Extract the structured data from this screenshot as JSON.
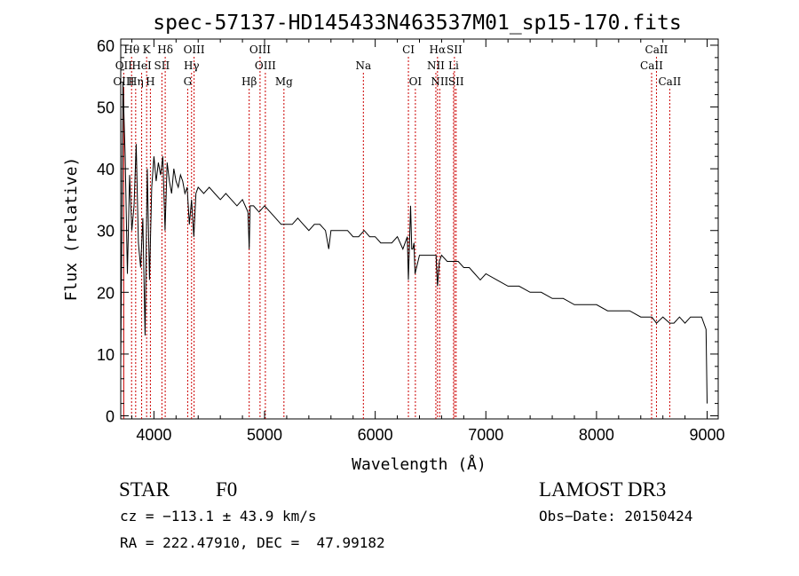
{
  "chart_data": {
    "type": "line",
    "title": "spec-57137-HD145433N463537M01_sp15-170.fits",
    "xlabel": "Wavelength (Å)",
    "ylabel": "Flux (relative)",
    "xlim": [
      3700,
      9100
    ],
    "ylim": [
      -0.5,
      61
    ],
    "xticks": [
      4000,
      5000,
      6000,
      7000,
      8000,
      9000
    ],
    "yticks": [
      0,
      10,
      20,
      30,
      40,
      50,
      60
    ],
    "line_color": "#000000",
    "marker_color": "#cc0000",
    "series": [
      {
        "name": "flux",
        "x": [
          3700,
          3720,
          3740,
          3760,
          3780,
          3800,
          3820,
          3840,
          3860,
          3880,
          3900,
          3920,
          3940,
          3960,
          3980,
          4000,
          4020,
          4040,
          4060,
          4080,
          4100,
          4120,
          4140,
          4160,
          4180,
          4200,
          4220,
          4240,
          4260,
          4280,
          4300,
          4320,
          4340,
          4360,
          4380,
          4400,
          4450,
          4500,
          4550,
          4600,
          4650,
          4700,
          4750,
          4800,
          4850,
          4861,
          4870,
          4900,
          4950,
          5000,
          5050,
          5100,
          5150,
          5200,
          5250,
          5300,
          5350,
          5400,
          5450,
          5500,
          5550,
          5580,
          5600,
          5650,
          5700,
          5750,
          5800,
          5850,
          5900,
          5950,
          6000,
          6050,
          6100,
          6150,
          6200,
          6250,
          6290,
          6300,
          6310,
          6320,
          6330,
          6340,
          6350,
          6360,
          6400,
          6450,
          6500,
          6550,
          6563,
          6580,
          6600,
          6650,
          6700,
          6750,
          6800,
          6850,
          6900,
          6950,
          7000,
          7100,
          7200,
          7300,
          7400,
          7500,
          7600,
          7700,
          7800,
          7900,
          8000,
          8100,
          8200,
          8300,
          8400,
          8500,
          8542,
          8600,
          8662,
          8700,
          8750,
          8800,
          8850,
          8900,
          8950,
          8990,
          9000
        ],
        "values": [
          8,
          54,
          42,
          23,
          39,
          30,
          34,
          44,
          28,
          24,
          32,
          13,
          40,
          22,
          37,
          42,
          38,
          41,
          39,
          42,
          30,
          41,
          38,
          36,
          40,
          38,
          37,
          39,
          38,
          36,
          37,
          31,
          35,
          29,
          36,
          37,
          36,
          37,
          36,
          35,
          36,
          35,
          34,
          35,
          33,
          27,
          34,
          34,
          33,
          34,
          33,
          32,
          31,
          31,
          31,
          32,
          31,
          30,
          31,
          31,
          30,
          27,
          30,
          30,
          30,
          30,
          29,
          29,
          30,
          29,
          29,
          28,
          28,
          28,
          29,
          27,
          29,
          22,
          28,
          34,
          27,
          27,
          28,
          23,
          26,
          26,
          26,
          26,
          21,
          25,
          26,
          25,
          25,
          25,
          24,
          24,
          23,
          22,
          23,
          22,
          21,
          21,
          20,
          20,
          19,
          19,
          18,
          18,
          18,
          17,
          17,
          17,
          16,
          16,
          15,
          16,
          15,
          15,
          16,
          15,
          16,
          16,
          16,
          14,
          2
        ]
      }
    ],
    "line_markers": [
      {
        "label": "Hθ",
        "x": 3798,
        "row": 1
      },
      {
        "label": "K",
        "x": 3934,
        "row": 1
      },
      {
        "label": "Hδ",
        "x": 4102,
        "row": 1
      },
      {
        "label": "OIII",
        "x": 4363,
        "row": 1
      },
      {
        "label": "OIII",
        "x": 4959,
        "row": 1
      },
      {
        "label": "CI",
        "x": 6300,
        "row": 1
      },
      {
        "label": "Hα",
        "x": 6563,
        "row": 1
      },
      {
        "label": "SII",
        "x": 6716,
        "row": 1
      },
      {
        "label": "CaII",
        "x": 8542,
        "row": 1
      },
      {
        "label": "OII",
        "x": 3727,
        "row": 2
      },
      {
        "label": "HeI",
        "x": 3889,
        "row": 2
      },
      {
        "label": "SII",
        "x": 4072,
        "row": 2
      },
      {
        "label": "Hγ",
        "x": 4340,
        "row": 2
      },
      {
        "label": "OIII",
        "x": 5007,
        "row": 2
      },
      {
        "label": "Na",
        "x": 5893,
        "row": 2
      },
      {
        "label": "NII",
        "x": 6548,
        "row": 2
      },
      {
        "label": "Li",
        "x": 6708,
        "row": 2
      },
      {
        "label": "CaII",
        "x": 8498,
        "row": 2
      },
      {
        "label": "OIII",
        "x": 3727,
        "row": 3
      },
      {
        "label": "Hη",
        "x": 3835,
        "row": 3
      },
      {
        "label": "H",
        "x": 3968,
        "row": 3
      },
      {
        "label": "G",
        "x": 4305,
        "row": 3
      },
      {
        "label": "Hβ",
        "x": 4861,
        "row": 3
      },
      {
        "label": "Mg",
        "x": 5175,
        "row": 3
      },
      {
        "label": "OI",
        "x": 6363,
        "row": 3
      },
      {
        "label": "NII",
        "x": 6583,
        "row": 3
      },
      {
        "label": "SII",
        "x": 6731,
        "row": 3
      },
      {
        "label": "CaII",
        "x": 8662,
        "row": 3
      }
    ]
  },
  "info": {
    "class_label": "STAR",
    "subclass": "F0",
    "survey": "LAMOST DR3",
    "redshift_line": "cz = −113.1 ± 43.9 km/s",
    "obs_date_line": "Obs−Date: 20150424",
    "coords_line": "RA = 222.47910, DEC =  47.99182"
  }
}
